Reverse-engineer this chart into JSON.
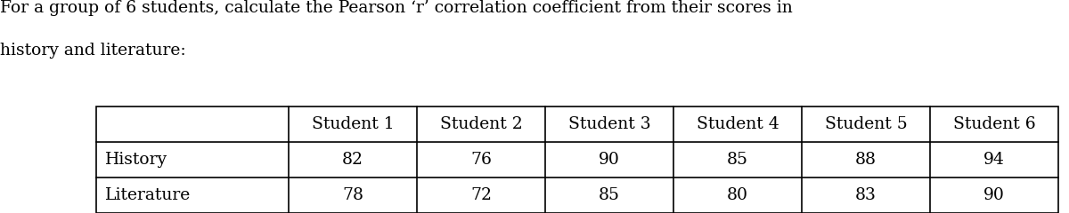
{
  "title_line1": "For a group of 6 students, calculate the Pearson ‘r’ correlation coefficient from their scores in",
  "title_line2": "history and literature:",
  "col_headers": [
    "",
    "Student 1",
    "Student 2",
    "Student 3",
    "Student 4",
    "Student 5",
    "Student 6"
  ],
  "rows": [
    [
      "History",
      "82",
      "76",
      "90",
      "85",
      "88",
      "94"
    ],
    [
      "Literature",
      "78",
      "72",
      "85",
      "80",
      "83",
      "90"
    ]
  ],
  "bg_color": "#ffffff",
  "text_color": "#000000",
  "font_family": "serif",
  "title_fontsize": 13.5,
  "table_fontsize": 13.5,
  "fig_width": 12.0,
  "fig_height": 2.4
}
